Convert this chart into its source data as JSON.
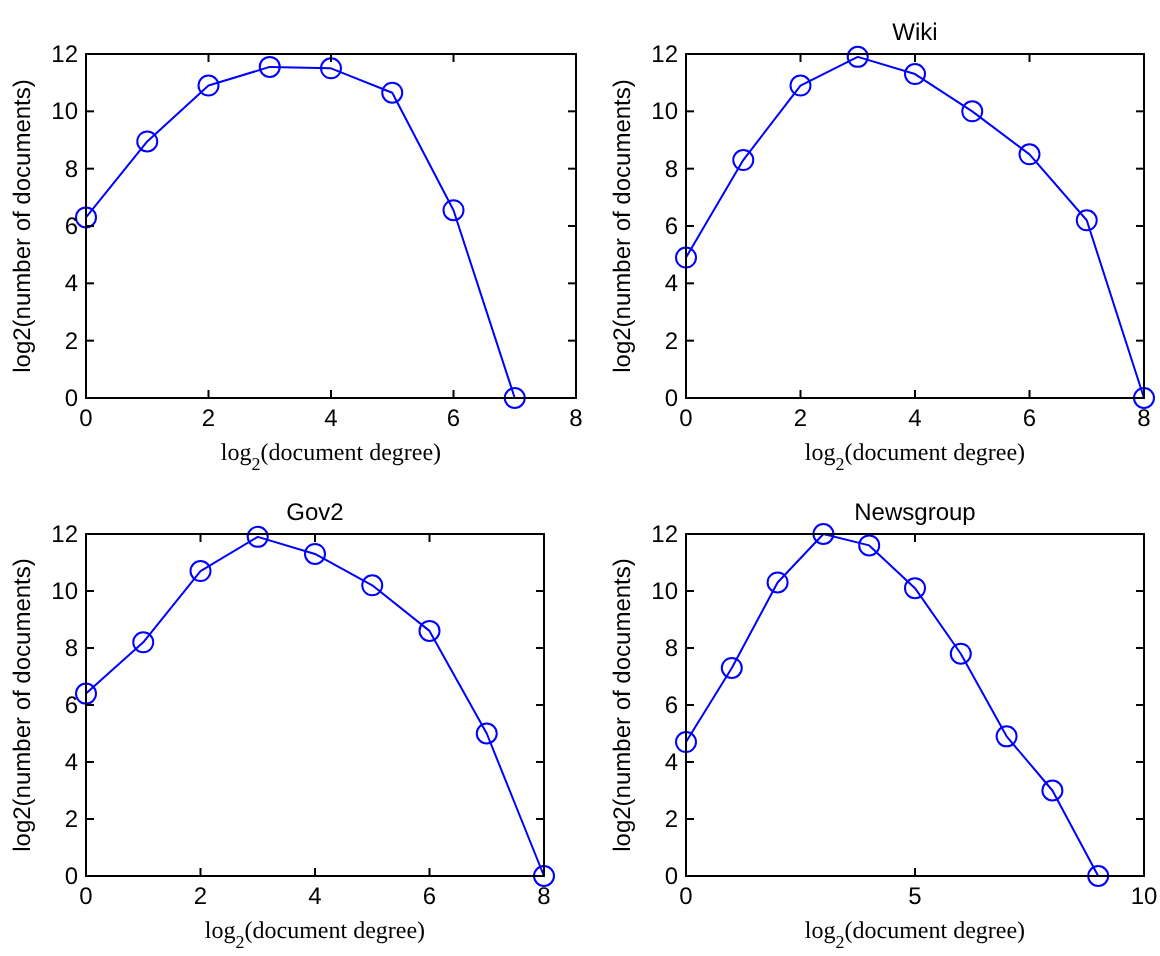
{
  "chart_data": [
    {
      "type": "line",
      "xlabel": "log$_{2}$(document degree)",
      "ylabel": "log2(number of documents)",
      "x": [
        0,
        1,
        2,
        3,
        4,
        5,
        6,
        7
      ],
      "series": [
        {
          "color": "#0000ff",
          "values": [
            6.3,
            8.95,
            10.9,
            11.55,
            11.5,
            10.65,
            6.55,
            0
          ]
        }
      ],
      "xlim": [
        0,
        8
      ],
      "xticks": [
        0,
        2,
        4,
        6,
        8
      ],
      "ylim": [
        0,
        12
      ],
      "yticks": [
        0,
        2,
        4,
        6,
        8,
        10,
        12
      ],
      "marker": "circle",
      "grid": false
    },
    {
      "type": "line",
      "title": "Wiki",
      "xlabel": "log$_{2}$(document degree)",
      "ylabel": "log2(number of documents)",
      "x": [
        0,
        1,
        2,
        3,
        4,
        5,
        6,
        7,
        8
      ],
      "series": [
        {
          "color": "#0000ff",
          "values": [
            4.9,
            8.3,
            10.9,
            11.9,
            11.3,
            10.0,
            8.5,
            6.2,
            0
          ]
        }
      ],
      "xlim": [
        0,
        8
      ],
      "xticks": [
        0,
        2,
        4,
        6,
        8
      ],
      "ylim": [
        0,
        12
      ],
      "yticks": [
        0,
        2,
        4,
        6,
        8,
        10,
        12
      ],
      "marker": "circle",
      "grid": false
    },
    {
      "type": "line",
      "title": "Gov2",
      "xlabel": "log$_{2}$(document degree)",
      "ylabel": "log2(number of documents)",
      "x": [
        0,
        1,
        2,
        3,
        4,
        5,
        6,
        7,
        8
      ],
      "series": [
        {
          "color": "#0000ff",
          "values": [
            6.4,
            8.2,
            10.7,
            11.9,
            11.3,
            10.2,
            8.6,
            5.0,
            0
          ]
        }
      ],
      "xlim": [
        0,
        8
      ],
      "xticks": [
        0,
        2,
        4,
        6,
        8
      ],
      "ylim": [
        0,
        12
      ],
      "yticks": [
        0,
        2,
        4,
        6,
        8,
        10,
        12
      ],
      "marker": "circle",
      "grid": false
    },
    {
      "type": "line",
      "title": "Newsgroup",
      "xlabel": "log$_{2}$(document degree)",
      "ylabel": "log2(number of documents)",
      "x": [
        0,
        1,
        2,
        3,
        4,
        5,
        6,
        7,
        8,
        9
      ],
      "series": [
        {
          "color": "#0000ff",
          "values": [
            4.7,
            7.3,
            10.3,
            12.0,
            11.6,
            10.1,
            7.8,
            4.9,
            3.0,
            0
          ]
        }
      ],
      "xlim": [
        0,
        10
      ],
      "xticks": [
        0,
        5,
        10
      ],
      "ylim": [
        0,
        12
      ],
      "yticks": [
        0,
        2,
        4,
        6,
        8,
        10,
        12
      ],
      "marker": "circle",
      "grid": false
    }
  ]
}
